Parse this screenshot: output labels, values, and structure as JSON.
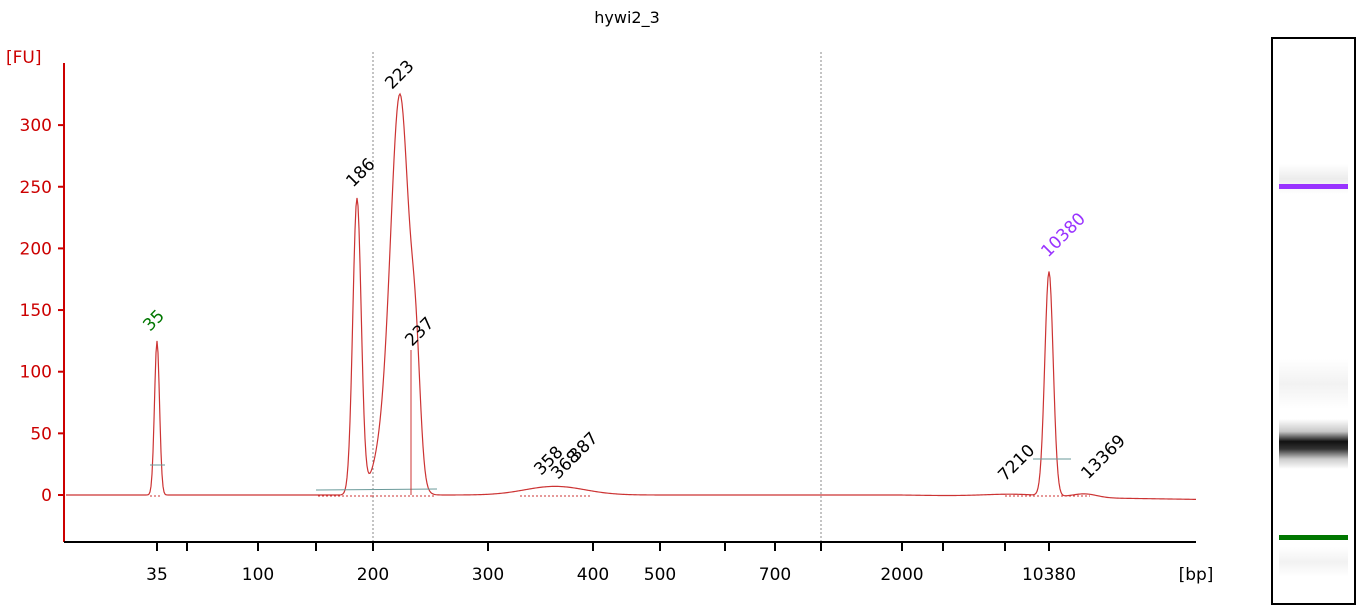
{
  "chart_data": {
    "type": "line",
    "title": "hywi2_3",
    "ylabel": "[FU]",
    "xlabel": "[bp]",
    "ylim": [
      -40,
      350
    ],
    "yticks": [
      0,
      50,
      100,
      150,
      200,
      250,
      300
    ],
    "xticks": [
      "35",
      "100",
      "200",
      "300",
      "400",
      "500",
      "700",
      "2000",
      "10380"
    ],
    "line_color": "#cc3333",
    "peaks": [
      {
        "label": "35",
        "height": 125,
        "color": "#007700",
        "marker": "lower"
      },
      {
        "label": "186",
        "height": 240,
        "color": "#000000"
      },
      {
        "label": "223",
        "height": 325,
        "color": "#000000"
      },
      {
        "label": "237",
        "height": 113,
        "color": "#000000"
      },
      {
        "label": "358",
        "height": 7,
        "color": "#000000"
      },
      {
        "label": "368",
        "height": 8,
        "color": "#000000"
      },
      {
        "label": "387",
        "height": 7,
        "color": "#000000"
      },
      {
        "label": "7210",
        "height": 2,
        "color": "#000000"
      },
      {
        "label": "10380",
        "height": 182,
        "color": "#9933ff",
        "marker": "upper"
      },
      {
        "label": "13369",
        "height": 3,
        "color": "#000000"
      }
    ]
  },
  "gel": {
    "upper_marker_color": "#9933ff",
    "lower_marker_color": "#007700"
  }
}
